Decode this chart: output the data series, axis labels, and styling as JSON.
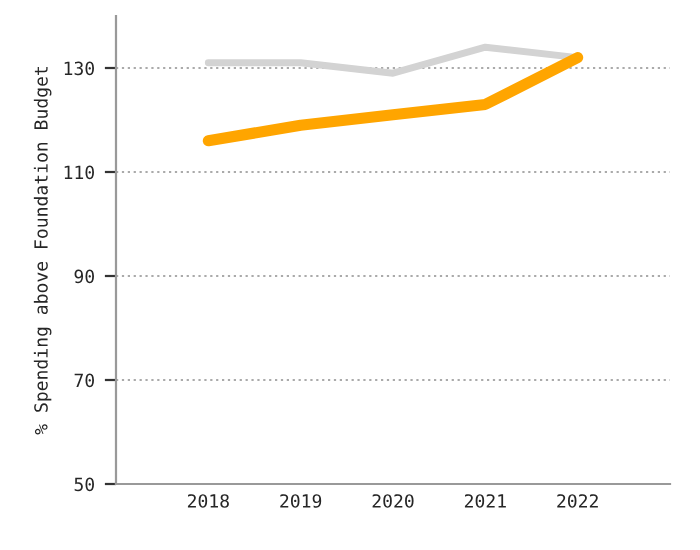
{
  "chart_data": {
    "type": "line",
    "ylabel": "% Spending above Foundation Budget",
    "categories": [
      "2018",
      "2019",
      "2020",
      "2021",
      "2022"
    ],
    "series": [
      {
        "color": "#d3d3d3",
        "values": [
          131,
          131,
          129,
          134,
          132
        ]
      },
      {
        "color": "#ffa500",
        "values": [
          116,
          119,
          121,
          123,
          132
        ]
      }
    ],
    "ylim": [
      50,
      140
    ],
    "yticks": [
      50,
      70,
      90,
      110,
      130
    ],
    "grid": "y",
    "marker": "none",
    "line_style": "solid"
  }
}
